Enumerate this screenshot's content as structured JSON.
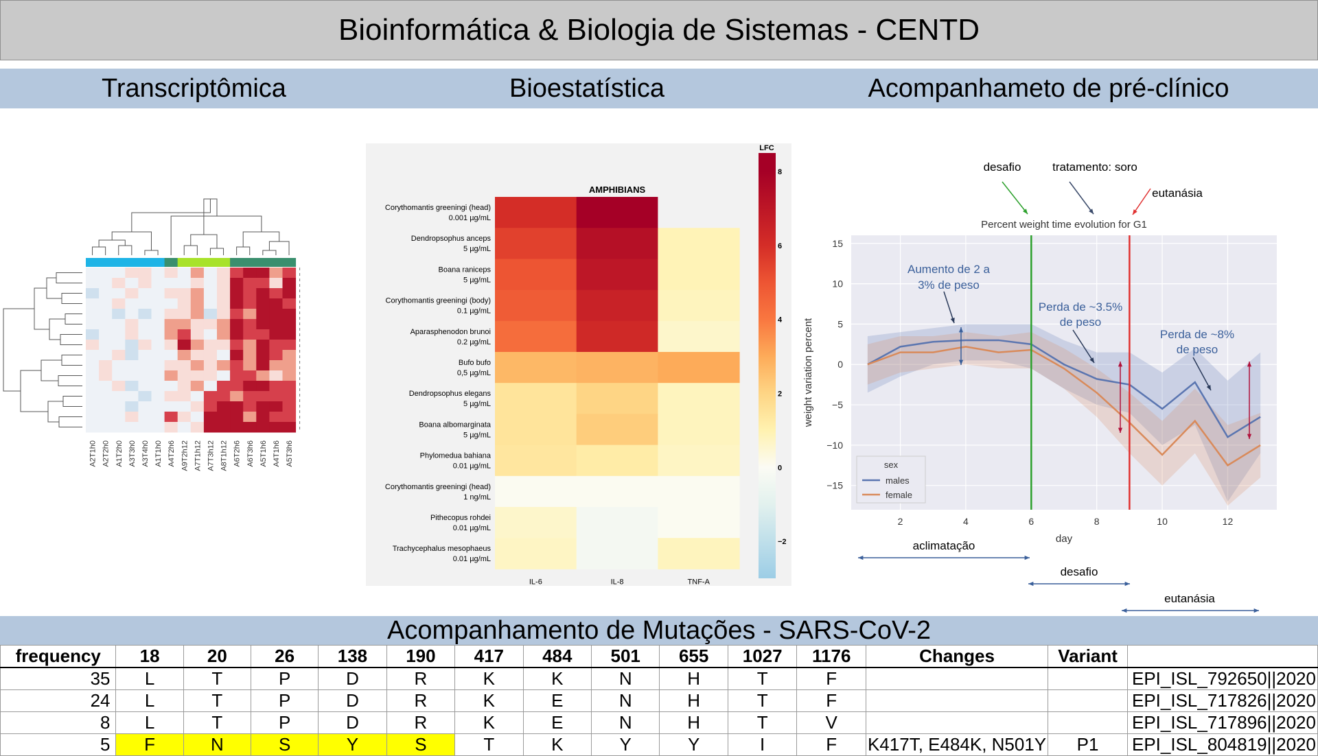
{
  "header": {
    "title": "Bioinformática & Biologia de Sistemas - CENTD"
  },
  "sections": {
    "transcriptomics": "Transcriptômica",
    "biostatistics": "Bioestatística",
    "preclinical": "Acompanhameto de pré-clínico"
  },
  "colors": {
    "title_bg": "#c9c9c9",
    "section_bg": "#b4c7dd",
    "highlight": "#ffff00"
  },
  "cluster_heatmap": {
    "column_labels": [
      "A2T1h0",
      "A2T2h0",
      "A1T2h0",
      "A3T3h0",
      "A3T4h0",
      "A1T1h0",
      "A4T2h6",
      "A9T2h12",
      "A7T1h12",
      "A7T3h12",
      "A8T1h12",
      "A6T2h6",
      "A6T3h6",
      "A5T1h6",
      "A4T1h6",
      "A5T3h6"
    ],
    "group_colors": [
      "#1eb4e6",
      "#1eb4e6",
      "#1eb4e6",
      "#1eb4e6",
      "#1eb4e6",
      "#1eb4e6",
      "#3a8f6e",
      "#a8e22a",
      "#a8e22a",
      "#a8e22a",
      "#a8e22a",
      "#3a8f6e",
      "#3a8f6e",
      "#3a8f6e",
      "#3a8f6e",
      "#3a8f6e"
    ],
    "values": [
      [
        0,
        0,
        0,
        1,
        1,
        0,
        1,
        0,
        2,
        0,
        1,
        3,
        4,
        4,
        2,
        3
      ],
      [
        0,
        0,
        1,
        0,
        1,
        0,
        0,
        0,
        1,
        0,
        1,
        4,
        3,
        3,
        1,
        4
      ],
      [
        -1,
        0,
        0,
        1,
        0,
        0,
        1,
        1,
        2,
        0,
        1,
        4,
        3,
        4,
        3,
        4
      ],
      [
        0,
        0,
        1,
        0,
        0,
        0,
        0,
        1,
        2,
        0,
        1,
        4,
        3,
        4,
        4,
        3
      ],
      [
        0,
        0,
        -1,
        0,
        -1,
        0,
        1,
        1,
        2,
        -1,
        1,
        3,
        2,
        4,
        4,
        4
      ],
      [
        0,
        0,
        0,
        1,
        0,
        0,
        2,
        2,
        1,
        1,
        2,
        4,
        3,
        4,
        4,
        4
      ],
      [
        -1,
        0,
        0,
        1,
        0,
        0,
        2,
        3,
        1,
        0,
        2,
        4,
        3,
        3,
        4,
        4
      ],
      [
        1,
        0,
        0,
        -1,
        1,
        0,
        1,
        4,
        2,
        1,
        1,
        3,
        2,
        4,
        3,
        3
      ],
      [
        0,
        0,
        1,
        -1,
        0,
        0,
        0,
        2,
        1,
        1,
        0,
        4,
        2,
        4,
        3,
        2
      ],
      [
        0,
        1,
        0,
        0,
        0,
        0,
        1,
        1,
        2,
        1,
        2,
        3,
        2,
        4,
        2,
        2
      ],
      [
        0,
        1,
        0,
        0,
        0,
        0,
        2,
        1,
        1,
        1,
        0,
        3,
        3,
        2,
        1,
        2
      ],
      [
        0,
        0,
        1,
        -1,
        0,
        0,
        0,
        1,
        2,
        0,
        3,
        3,
        4,
        4,
        3,
        3
      ],
      [
        0,
        0,
        0,
        0,
        -1,
        0,
        1,
        1,
        0,
        3,
        3,
        2,
        3,
        3,
        3,
        3
      ],
      [
        0,
        0,
        0,
        -1,
        0,
        0,
        0,
        0,
        1,
        3,
        4,
        4,
        3,
        4,
        4,
        3
      ],
      [
        0,
        0,
        0,
        1,
        0,
        0,
        3,
        1,
        0,
        4,
        4,
        4,
        2,
        4,
        3,
        3
      ],
      [
        0,
        0,
        0,
        0,
        0,
        0,
        1,
        0,
        1,
        4,
        4,
        4,
        4,
        4,
        4,
        4
      ]
    ]
  },
  "lfc_heatmap": {
    "type": "heatmap",
    "title": "AMPHIBIANS",
    "colorbar_label": "LFC",
    "colorbar_ticks": [
      "8",
      "6",
      "4",
      "2",
      "0",
      "−2"
    ],
    "colorbar_tick_values": [
      8,
      6,
      4,
      2,
      0,
      -2
    ],
    "columns": [
      "IL-6",
      "IL-8",
      "TNF-A"
    ],
    "rows": [
      {
        "name": "Corythomantis greeningi (head)",
        "dose": "0.001 µg/mL",
        "values": [
          6.0,
          8.0,
          null
        ]
      },
      {
        "name": "Dendropsophus anceps",
        "dose": "5 µg/mL",
        "values": [
          5.5,
          7.3,
          0.9
        ]
      },
      {
        "name": "Boana raniceps",
        "dose": "5 µg/mL",
        "values": [
          5.0,
          7.0,
          0.9
        ]
      },
      {
        "name": "Corythomantis greeningi (body)",
        "dose": "0.1 µg/mL",
        "values": [
          4.8,
          6.5,
          0.8
        ]
      },
      {
        "name": "Aparasphenodon brunoi",
        "dose": "0.2 µg/mL",
        "values": [
          4.3,
          6.2,
          0.6
        ]
      },
      {
        "name": "Bufo bufo",
        "dose": "0,5 µg/mL",
        "values": [
          2.7,
          2.8,
          3.0
        ]
      },
      {
        "name": "Dendropsophus elegans",
        "dose": "5 µg/mL",
        "values": [
          1.5,
          2.0,
          0.8
        ]
      },
      {
        "name": "Boana albomarginata",
        "dose": "5 µg/mL",
        "values": [
          1.5,
          2.2,
          0.8
        ]
      },
      {
        "name": "Phylomedua bahiana",
        "dose": "0.01 µg/mL",
        "values": [
          1.4,
          1.2,
          0.7
        ]
      },
      {
        "name": "Corythomantis greeningi (head)",
        "dose": "1 ng/mL",
        "values": [
          0.05,
          0.05,
          0.05
        ]
      },
      {
        "name": "Pithecopus rohdei",
        "dose": "0.01 µg/mL",
        "values": [
          0.6,
          -0.3,
          0.05
        ]
      },
      {
        "name": "Trachycephalus mesophaeus",
        "dose": "0.01 µg/mL",
        "values": [
          0.7,
          -0.3,
          0.8
        ]
      }
    ]
  },
  "chart_data": {
    "type": "line",
    "title": "Percent weight time evolution for G1",
    "xlabel": "day",
    "ylabel": "weight variation percent",
    "xlim": [
      0.5,
      13.5
    ],
    "ylim": [
      -18,
      16
    ],
    "xticks": [
      2,
      4,
      6,
      8,
      10,
      12
    ],
    "yticks": [
      15,
      10,
      5,
      0,
      -5,
      -10,
      -15
    ],
    "legend": {
      "title": "sex",
      "position": "bottom-left"
    },
    "series": [
      {
        "name": "males",
        "color": "#5a75b0",
        "x": [
          1,
          2,
          3,
          4,
          5,
          6,
          7,
          8,
          9,
          10,
          11,
          12,
          13
        ],
        "y": [
          0,
          2.2,
          2.8,
          3.0,
          3.0,
          2.5,
          0,
          -1.8,
          -2.5,
          -5.5,
          -2.2,
          -9.0,
          -6.5
        ],
        "lower": [
          -3.5,
          -1.5,
          0,
          0.5,
          0.5,
          -0.5,
          -3,
          -5,
          -6,
          -10,
          -7.5,
          -17,
          -11
        ],
        "upper": [
          3.5,
          4,
          4.5,
          5,
          5,
          5,
          3,
          1.5,
          1.5,
          -1,
          2,
          -2,
          1.5
        ]
      },
      {
        "name": "female",
        "color": "#d98a5a",
        "x": [
          1,
          2,
          3,
          4,
          5,
          6,
          7,
          8,
          9,
          10,
          11,
          12,
          13
        ],
        "y": [
          0,
          1.5,
          1.5,
          2.2,
          1.5,
          1.8,
          -0.5,
          -3.5,
          -7.2,
          -11.2,
          -7.0,
          -12.5,
          -10.0
        ],
        "lower": [
          -2.5,
          -1,
          -0.5,
          0,
          -0.5,
          -0.5,
          -3,
          -6.5,
          -11,
          -15,
          -11,
          -17.5,
          -14
        ],
        "upper": [
          2.5,
          3.5,
          3.5,
          4,
          3.5,
          4,
          2,
          -0.5,
          -3.5,
          -7,
          -3,
          -7.5,
          -6
        ]
      }
    ],
    "vlines": [
      {
        "x": 6,
        "color": "#2ca02c"
      },
      {
        "x": 9,
        "color": "#e03030"
      }
    ],
    "annotations": {
      "top": [
        "desafio",
        "tratamento: soro",
        "eutanásia"
      ],
      "gain": [
        "Aumento de 2 a",
        "3% de peso"
      ],
      "loss1": [
        "Perda de ~3.5%",
        "de peso"
      ],
      "loss2": [
        "Perda de ~8%",
        "de peso"
      ],
      "periods": [
        "aclimatação",
        "desafio",
        "eutanásia"
      ]
    }
  },
  "mutations": {
    "title": "Acompanhamento de Mutações - SARS-CoV-2",
    "headers": [
      "frequency",
      "18",
      "20",
      "26",
      "138",
      "190",
      "417",
      "484",
      "501",
      "655",
      "1027",
      "1176",
      "Changes",
      "Variant",
      ""
    ],
    "rows": [
      {
        "cells": [
          "35",
          "L",
          "T",
          "P",
          "D",
          "R",
          "K",
          "K",
          "N",
          "H",
          "T",
          "F",
          "",
          "",
          "EPI_ISL_792650||2020"
        ],
        "highlight": []
      },
      {
        "cells": [
          "24",
          "L",
          "T",
          "P",
          "D",
          "R",
          "K",
          "E",
          "N",
          "H",
          "T",
          "F",
          "",
          "",
          "EPI_ISL_717826||2020"
        ],
        "highlight": []
      },
      {
        "cells": [
          "8",
          "L",
          "T",
          "P",
          "D",
          "R",
          "K",
          "E",
          "N",
          "H",
          "T",
          "V",
          "",
          "",
          "EPI_ISL_717896||2020"
        ],
        "highlight": []
      },
      {
        "cells": [
          "5",
          "F",
          "N",
          "S",
          "Y",
          "S",
          "T",
          "K",
          "Y",
          "Y",
          "I",
          "F",
          "K417T, E484K, N501Y",
          "P1",
          "EPI_ISL_804819||2020"
        ],
        "highlight": [
          1,
          2,
          3,
          4,
          5
        ]
      }
    ]
  }
}
